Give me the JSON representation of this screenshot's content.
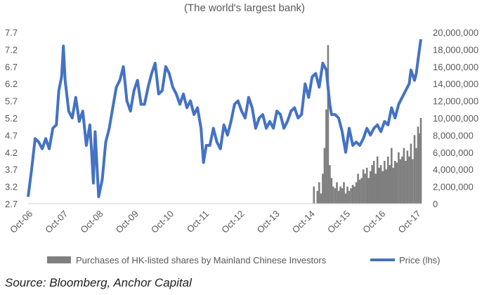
{
  "subtitle": "(The world's largest bank)",
  "source": "Source: Bloomberg, Anchor Capital",
  "chart_data": {
    "type": "line",
    "grid": false,
    "legend_position": "bottom",
    "y_left": {
      "min": 2.7,
      "max": 7.7,
      "ticks": [
        2.7,
        3.2,
        3.7,
        4.2,
        4.7,
        5.2,
        5.7,
        6.2,
        6.7,
        7.2,
        7.7
      ],
      "tick_labels": [
        "2.7",
        "3.2",
        "3.7",
        "4.2",
        "4.7",
        "5.2",
        "5.7",
        "6.2",
        "6.7",
        "7.2",
        "7.7"
      ]
    },
    "y_right": {
      "min": 0,
      "max": 20000000,
      "ticks": [
        0,
        2000000,
        4000000,
        6000000,
        8000000,
        10000000,
        12000000,
        14000000,
        16000000,
        18000000,
        20000000
      ],
      "tick_labels": [
        "0",
        "2,000,000",
        "4,000,000",
        "6,000,000",
        "8,000,000",
        "10,000,000",
        "12,000,000",
        "14,000,000",
        "16,000,000",
        "18,000,000",
        "20,000,000"
      ]
    },
    "x_axis": {
      "start": 2006.75,
      "end": 2017.9,
      "ticks": [
        2006.75,
        2007.75,
        2008.75,
        2009.75,
        2010.75,
        2011.75,
        2012.75,
        2013.75,
        2014.75,
        2015.75,
        2016.75,
        2017.75
      ],
      "tick_labels": [
        "Oct-06",
        "Oct-07",
        "Oct-08",
        "Oct-09",
        "Oct-10",
        "Oct-11",
        "Oct-12",
        "Oct-13",
        "Oct-14",
        "Oct-15",
        "Oct-16",
        "Oct-17"
      ]
    },
    "series": [
      {
        "name": "Price (lhs)",
        "type": "line",
        "axis": "left",
        "color": "#4472c4",
        "x": [
          2006.75,
          2006.85,
          2006.95,
          2007.05,
          2007.15,
          2007.25,
          2007.35,
          2007.45,
          2007.55,
          2007.62,
          2007.7,
          2007.75,
          2007.8,
          2007.9,
          2008.0,
          2008.1,
          2008.2,
          2008.3,
          2008.4,
          2008.5,
          2008.55,
          2008.6,
          2008.65,
          2008.75,
          2008.85,
          2008.95,
          2009.05,
          2009.15,
          2009.25,
          2009.35,
          2009.45,
          2009.55,
          2009.65,
          2009.75,
          2009.85,
          2009.95,
          2010.05,
          2010.15,
          2010.25,
          2010.35,
          2010.45,
          2010.55,
          2010.65,
          2010.75,
          2010.85,
          2010.95,
          2011.05,
          2011.15,
          2011.25,
          2011.35,
          2011.45,
          2011.55,
          2011.65,
          2011.72,
          2011.8,
          2011.9,
          2012.0,
          2012.1,
          2012.2,
          2012.3,
          2012.4,
          2012.5,
          2012.6,
          2012.7,
          2012.8,
          2012.9,
          2013.0,
          2013.1,
          2013.2,
          2013.3,
          2013.4,
          2013.5,
          2013.6,
          2013.7,
          2013.8,
          2013.9,
          2014.0,
          2014.1,
          2014.2,
          2014.3,
          2014.4,
          2014.5,
          2014.6,
          2014.7,
          2014.8,
          2014.9,
          2015.0,
          2015.1,
          2015.2,
          2015.3,
          2015.35,
          2015.45,
          2015.55,
          2015.65,
          2015.75,
          2015.85,
          2015.95,
          2016.05,
          2016.15,
          2016.25,
          2016.35,
          2016.45,
          2016.55,
          2016.65,
          2016.75,
          2016.85,
          2016.95,
          2017.05,
          2017.15,
          2017.25,
          2017.35,
          2017.45,
          2017.55,
          2017.6,
          2017.7,
          2017.75,
          2017.8,
          2017.88
        ],
        "y": [
          2.9,
          3.7,
          4.6,
          4.5,
          4.3,
          4.6,
          4.3,
          4.9,
          5.0,
          6.0,
          6.4,
          7.3,
          6.3,
          5.4,
          5.2,
          5.8,
          5.1,
          5.4,
          4.4,
          5.0,
          4.2,
          3.3,
          4.8,
          2.9,
          3.4,
          4.5,
          4.9,
          5.5,
          6.1,
          6.3,
          6.7,
          5.7,
          5.4,
          6.0,
          6.3,
          5.6,
          5.6,
          6.1,
          6.5,
          6.8,
          5.9,
          6.0,
          6.7,
          6.5,
          6.1,
          5.9,
          5.6,
          5.9,
          5.5,
          5.7,
          5.3,
          5.5,
          4.9,
          3.9,
          4.4,
          4.4,
          4.9,
          4.5,
          4.3,
          5.0,
          4.7,
          5.1,
          5.6,
          5.7,
          5.4,
          5.2,
          5.8,
          5.5,
          4.9,
          5.2,
          5.3,
          4.9,
          5.1,
          4.9,
          5.4,
          5.3,
          4.9,
          5.1,
          5.4,
          5.5,
          5.2,
          5.3,
          6.2,
          5.8,
          6.4,
          6.5,
          6.1,
          6.8,
          6.6,
          5.6,
          5.3,
          5.3,
          5.2,
          4.8,
          4.2,
          4.9,
          4.4,
          4.5,
          4.4,
          4.6,
          4.9,
          4.7,
          4.9,
          5.0,
          4.8,
          5.1,
          5.0,
          5.5,
          5.2,
          5.6,
          5.8,
          6.0,
          6.2,
          6.6,
          6.3,
          6.5,
          6.9,
          7.5
        ]
      },
      {
        "name": "Purchases of HK-listed shares by Mainland Chinese Investors",
        "type": "bar",
        "axis": "right",
        "color": "#7f7f7f",
        "x": [
          2014.85,
          2014.95,
          2015.0,
          2015.05,
          2015.1,
          2015.15,
          2015.2,
          2015.25,
          2015.3,
          2015.35,
          2015.4,
          2015.45,
          2015.5,
          2015.55,
          2015.6,
          2015.65,
          2015.7,
          2015.75,
          2015.8,
          2015.85,
          2015.9,
          2015.95,
          2016.0,
          2016.05,
          2016.1,
          2016.15,
          2016.2,
          2016.25,
          2016.3,
          2016.35,
          2016.4,
          2016.45,
          2016.5,
          2016.55,
          2016.6,
          2016.65,
          2016.7,
          2016.75,
          2016.8,
          2016.85,
          2016.9,
          2016.95,
          2017.0,
          2017.05,
          2017.1,
          2017.15,
          2017.2,
          2017.25,
          2017.3,
          2017.35,
          2017.4,
          2017.45,
          2017.5,
          2017.55,
          2017.6,
          2017.65,
          2017.7,
          2017.75,
          2017.8,
          2017.85,
          2017.88
        ],
        "y": [
          2000000,
          1500000,
          2500000,
          1200000,
          3500000,
          6500000,
          11000000,
          18500000,
          4500000,
          3000000,
          2000000,
          1800000,
          2500000,
          1500000,
          2000000,
          1800000,
          2500000,
          1200000,
          2000000,
          1500000,
          1800000,
          2200000,
          2000000,
          2500000,
          3500000,
          2800000,
          3000000,
          4000000,
          3500000,
          4200000,
          3000000,
          3800000,
          4500000,
          5000000,
          3500000,
          5500000,
          4200000,
          4500000,
          3800000,
          5000000,
          4000000,
          5500000,
          4500000,
          6500000,
          4200000,
          5000000,
          4800000,
          6000000,
          5200000,
          5500000,
          6500000,
          5000000,
          6200000,
          5500000,
          7000000,
          5200000,
          8000000,
          6500000,
          9000000,
          8200000,
          10000000
        ]
      }
    ]
  },
  "legend": [
    {
      "label": "Purchases of HK-listed shares by Mainland Chinese Investors",
      "swatch": "bar"
    },
    {
      "label": "Price (lhs)",
      "swatch": "line"
    }
  ]
}
